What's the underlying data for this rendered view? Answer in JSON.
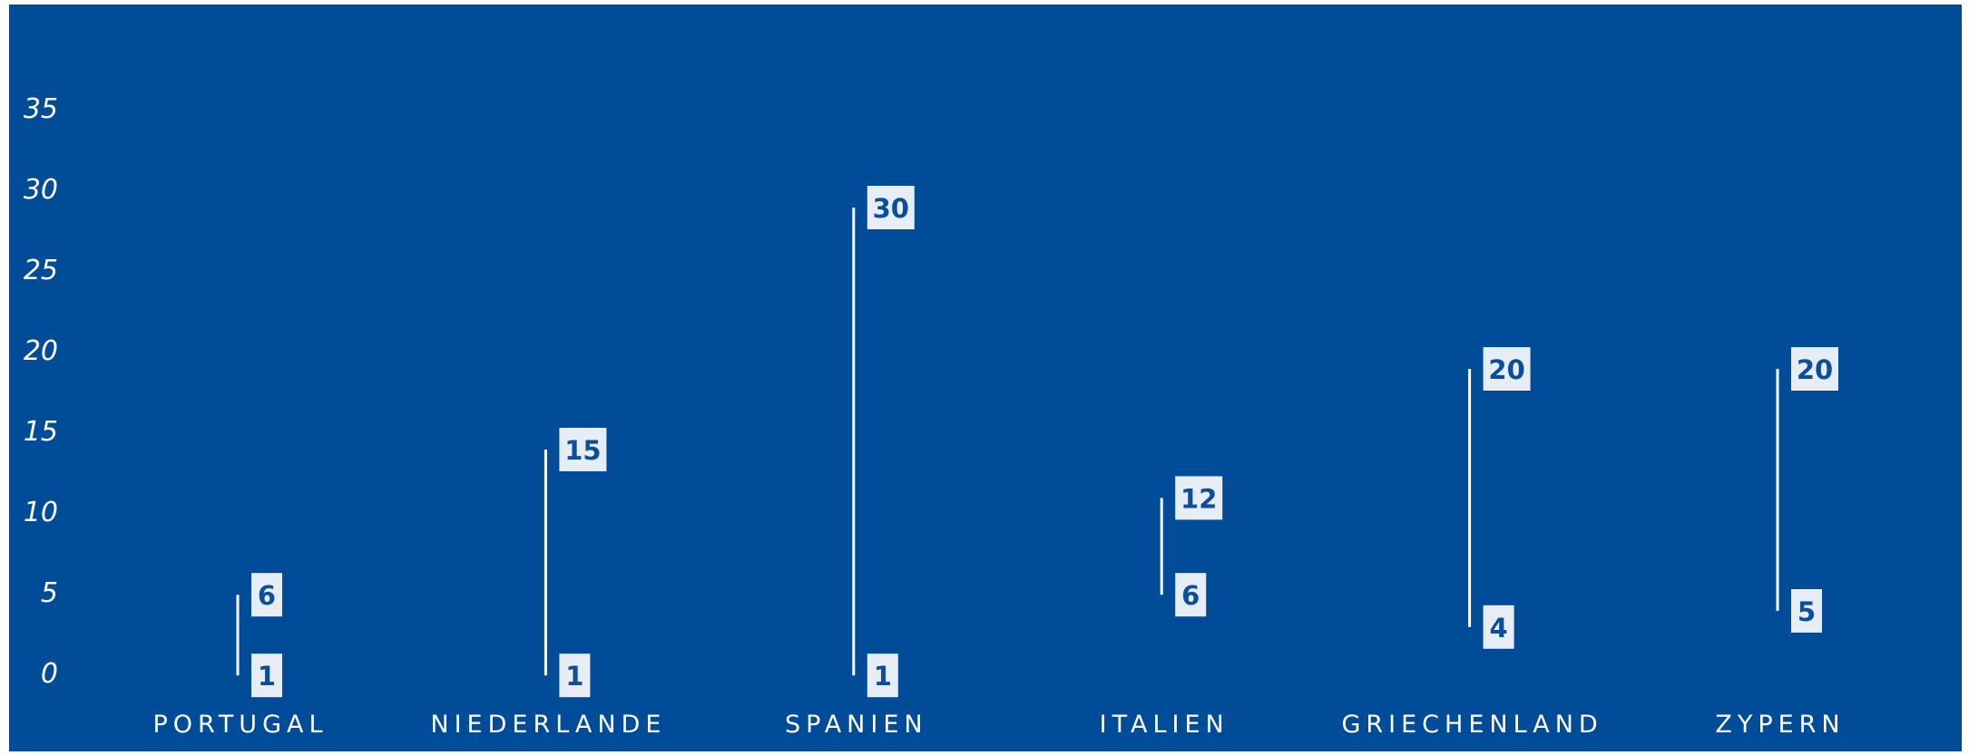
{
  "chart_data": {
    "type": "range",
    "title": "",
    "xlabel": "",
    "ylabel": "",
    "categories": [
      "PORTUGAL",
      "NIEDERLANDE",
      "SPANIEN",
      "ITALIEN",
      "GRIECHENLAND",
      "ZYPERN"
    ],
    "series": [
      {
        "values": [
          1,
          1,
          1,
          6,
          4,
          5
        ]
      },
      {
        "values": [
          6,
          15,
          30,
          12,
          20,
          20
        ]
      }
    ],
    "yticks": [
      "0",
      "5",
      "10",
      "15",
      "20",
      "25",
      "30",
      "35"
    ],
    "ylim": [
      0,
      35
    ],
    "grid": false,
    "legend": "none"
  },
  "colors": {
    "background": "#004c99",
    "line": "#ffffff",
    "label_box": "#e6edf5",
    "label_text": "#0b4f9c",
    "tick_text": "#ffffff"
  }
}
